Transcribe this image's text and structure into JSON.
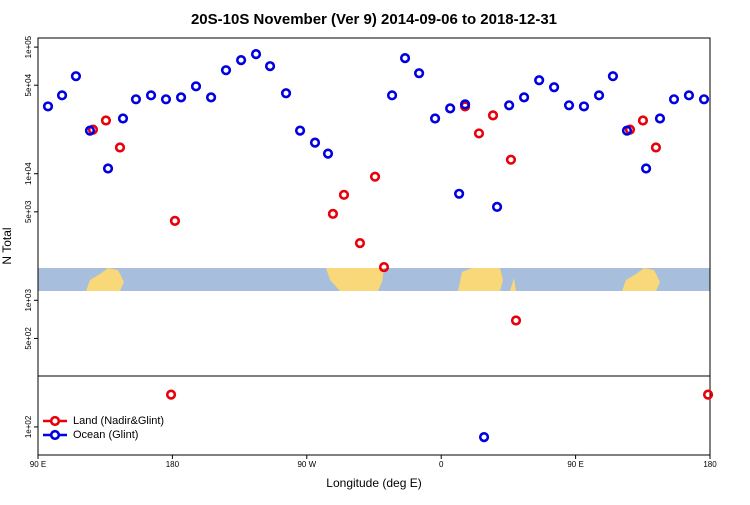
{
  "chart_data": {
    "type": "scatter",
    "title": "20S-10S November (Ver 9)   2014-09-06 to 2018-12-31",
    "x_label": "Longitude (deg E)",
    "y_label": "N Total",
    "log_y": true,
    "legend": "bottom-left",
    "xlim": [
      90,
      540
    ],
    "xticks": [
      {
        "value": 90,
        "label": "90 E"
      },
      {
        "value": 180,
        "label": "180"
      },
      {
        "value": 270,
        "label": "90 W"
      },
      {
        "value": 360,
        "label": "0"
      },
      {
        "value": 450,
        "label": "90 E"
      },
      {
        "value": 540,
        "label": "180"
      }
    ],
    "ylim": [
      60,
      118000
    ],
    "yticks": [
      {
        "value": 100000,
        "label": "1e+05"
      },
      {
        "value": 50000,
        "label": "5e+04"
      },
      {
        "value": 10000,
        "label": "1e+04"
      },
      {
        "value": 5000,
        "label": "5e+03"
      },
      {
        "value": 1000,
        "label": "1e+03"
      },
      {
        "value": 500,
        "label": "5e+02"
      },
      {
        "value": 100,
        "label": "1e+02"
      }
    ],
    "series": [
      {
        "name": "Land (Nadir&Glint)",
        "color": "#e8000b",
        "x": [
          126.8,
          135.5,
          144.9,
          181.7,
          179.1,
          287.5,
          294.9,
          305.6,
          315.7,
          321.7,
          376.0,
          385.3,
          394.7,
          406.7,
          410.1,
          486.4,
          495.1,
          503.8,
          538.7
        ],
        "values": [
          22300,
          26300,
          16100,
          4240,
          180,
          4820,
          6810,
          2830,
          9470,
          1830,
          34000,
          20800,
          28900,
          12900,
          693,
          22300,
          26300,
          16100,
          180
        ]
      },
      {
        "name": "Ocean (Glint)",
        "color": "#0000e0",
        "x": [
          96.7,
          106.1,
          115.4,
          124.8,
          136.9,
          146.9,
          155.6,
          165.7,
          175.7,
          185.8,
          195.8,
          205.9,
          215.9,
          226.0,
          236.0,
          245.4,
          256.1,
          265.5,
          275.5,
          284.2,
          327.1,
          335.8,
          345.2,
          355.9,
          366.0,
          372.0,
          376.0,
          397.4,
          405.5,
          415.5,
          425.6,
          435.6,
          445.6,
          455.6,
          465.7,
          475.0,
          484.4,
          497.2,
          506.5,
          515.9,
          525.9,
          536.0,
          388.7
        ],
        "values": [
          34000,
          41600,
          58900,
          21900,
          11000,
          27300,
          38700,
          41600,
          38700,
          40100,
          49000,
          40100,
          65700,
          78900,
          88000,
          70700,
          43200,
          21900,
          17600,
          14400,
          41600,
          81800,
          62200,
          27300,
          32800,
          6940,
          35300,
          5470,
          34700,
          40100,
          54700,
          48200,
          34700,
          34000,
          41600,
          58900,
          21900,
          11000,
          27300,
          38700,
          41600,
          38700,
          83
        ]
      }
    ]
  }
}
